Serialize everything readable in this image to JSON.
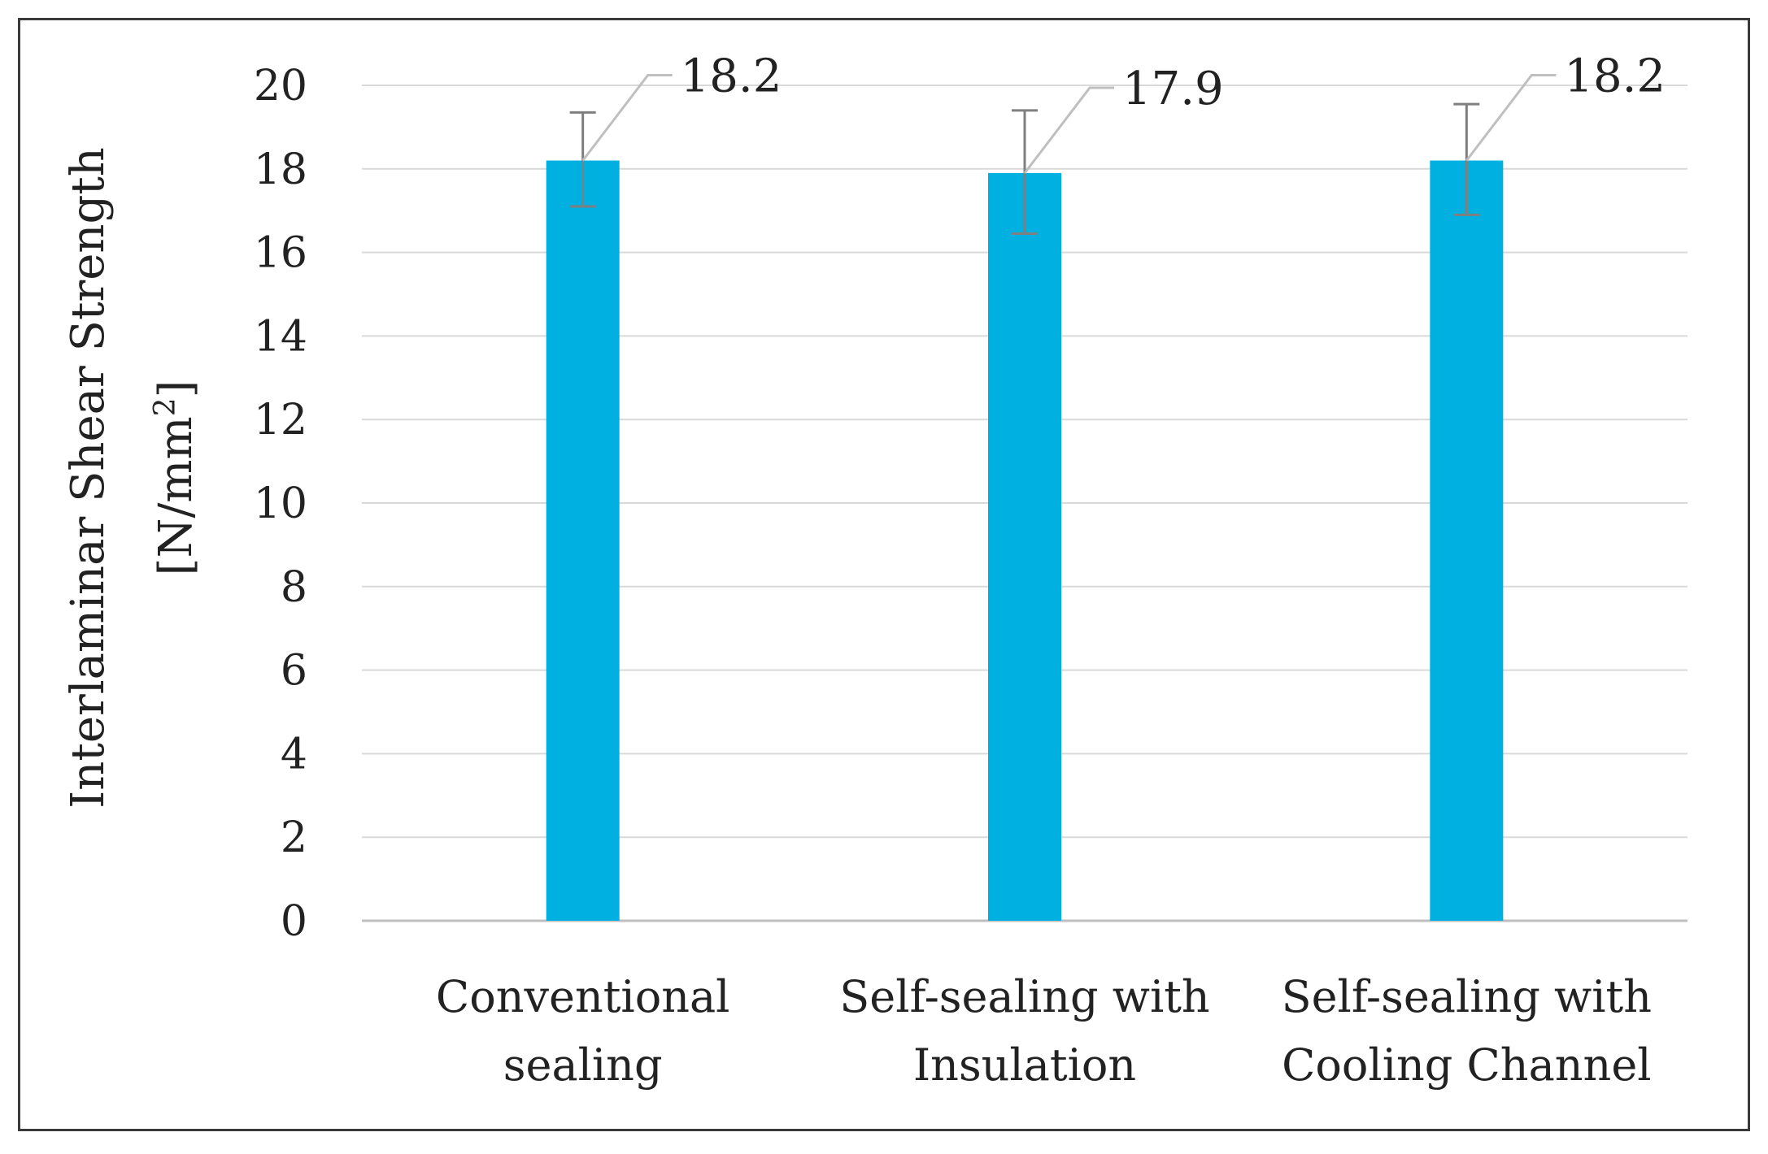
{
  "chart_data": {
    "type": "bar",
    "title": "",
    "ylabel": "Interlaminar Shear Strength",
    "ylabel_unit": "[N/mm",
    "ylabel_unit_sup": "2",
    "ylabel_unit_close": "]",
    "xlabel": "",
    "categories": [
      [
        "Conventional",
        "sealing"
      ],
      [
        "Self-sealing with",
        "Insulation"
      ],
      [
        "Self-sealing with",
        "Cooling Channel"
      ]
    ],
    "values": [
      18.2,
      17.9,
      18.2
    ],
    "value_labels": [
      "18.2",
      "17.9",
      "18.2"
    ],
    "error_upper": [
      19.35,
      19.4,
      19.55
    ],
    "error_lower": [
      17.1,
      16.45,
      16.9
    ],
    "ylim": [
      0,
      20
    ],
    "yticks": [
      0,
      2,
      4,
      6,
      8,
      10,
      12,
      14,
      16,
      18,
      20
    ],
    "grid": true,
    "legend": "none",
    "colors": {
      "bar": "#00b0e0",
      "grid": "#d9d9d9",
      "error": "#7f7f7f",
      "leader": "#bfbfbf"
    }
  }
}
